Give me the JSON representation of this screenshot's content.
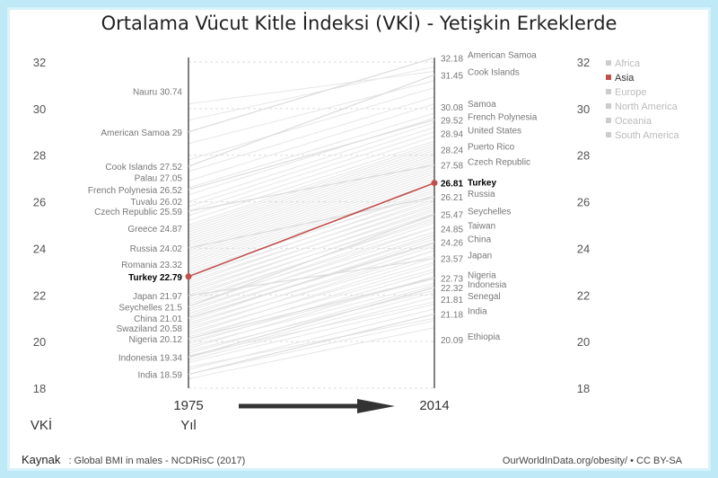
{
  "chart_data": {
    "type": "line",
    "title": "Ortalama Vücut Kitle İndeksi (VKİ) - Yetişkin Erkeklerde",
    "x": [
      "1975",
      "2014"
    ],
    "xlabel": "Yıl",
    "ylabel": "VKİ",
    "ylim": [
      18,
      32
    ],
    "yticks": [
      "18",
      "20",
      "22",
      "24",
      "26",
      "28",
      "30",
      "32"
    ],
    "grid": true,
    "legend_position": "right",
    "legend": [
      {
        "name": "Africa",
        "color": "#cccccc",
        "selected": false
      },
      {
        "name": "Asia",
        "color": "#c0504d",
        "selected": true
      },
      {
        "name": "Europe",
        "color": "#cccccc",
        "selected": false
      },
      {
        "name": "North America",
        "color": "#cccccc",
        "selected": false
      },
      {
        "name": "Oceania",
        "color": "#cccccc",
        "selected": false
      },
      {
        "name": "South America",
        "color": "#cccccc",
        "selected": false
      }
    ],
    "highlight_color": "#c0504d",
    "series": [
      {
        "name": "Turkey",
        "values": [
          22.79,
          26.81
        ],
        "highlight": true
      },
      {
        "name": "Nauru",
        "values": [
          30.74,
          null
        ]
      },
      {
        "name": "American Samoa",
        "values": [
          29,
          32.18
        ]
      },
      {
        "name": "Cook Islands",
        "values": [
          27.52,
          31.45
        ]
      },
      {
        "name": "Palau",
        "values": [
          27.05,
          null
        ]
      },
      {
        "name": "French Polynesia",
        "values": [
          26.52,
          29.52
        ]
      },
      {
        "name": "Tuvalu",
        "values": [
          26.02,
          null
        ]
      },
      {
        "name": "Czech Republic",
        "values": [
          25.59,
          27.58
        ]
      },
      {
        "name": "Greece",
        "values": [
          24.87,
          null
        ]
      },
      {
        "name": "Russia",
        "values": [
          24.02,
          26.21
        ]
      },
      {
        "name": "Romania",
        "values": [
          23.32,
          null
        ]
      },
      {
        "name": "Japan",
        "values": [
          21.97,
          23.57
        ]
      },
      {
        "name": "Seychelles",
        "values": [
          21.5,
          25.47
        ]
      },
      {
        "name": "China",
        "values": [
          21.01,
          24.26
        ]
      },
      {
        "name": "Swaziland",
        "values": [
          20.58,
          null
        ]
      },
      {
        "name": "Nigeria",
        "values": [
          20.12,
          22.73
        ]
      },
      {
        "name": "Indonesia",
        "values": [
          19.34,
          22.32
        ]
      },
      {
        "name": "India",
        "values": [
          18.59,
          21.18
        ]
      },
      {
        "name": "Samoa",
        "values": [
          null,
          30.08
        ]
      },
      {
        "name": "United States",
        "values": [
          null,
          28.94
        ]
      },
      {
        "name": "Puerto Rico",
        "values": [
          null,
          28.24
        ]
      },
      {
        "name": "Taiwan",
        "values": [
          null,
          24.85
        ]
      },
      {
        "name": "Senegal",
        "values": [
          null,
          21.81
        ]
      },
      {
        "name": "Ethiopia",
        "values": [
          null,
          20.09
        ]
      }
    ],
    "labels_1975": [
      {
        "text": "Nauru 30.74",
        "value": 30.74
      },
      {
        "text": "American Samoa 29",
        "value": 29
      },
      {
        "text": "Cook Islands 27.52",
        "value": 27.52
      },
      {
        "text": "Palau 27.05",
        "value": 27.05
      },
      {
        "text": "French Polynesia 26.52",
        "value": 26.52
      },
      {
        "text": "Tuvalu 26.02",
        "value": 26.02
      },
      {
        "text": "Czech Republic 25.59",
        "value": 25.59
      },
      {
        "text": "Greece 24.87",
        "value": 24.87
      },
      {
        "text": "Russia 24.02",
        "value": 24.02
      },
      {
        "text": "Romania 23.32",
        "value": 23.32
      },
      {
        "text": "Turkey 22.79",
        "value": 22.79,
        "highlight": true
      },
      {
        "text": "Japan 21.97",
        "value": 21.97
      },
      {
        "text": "Seychelles 21.5",
        "value": 21.5
      },
      {
        "text": "China 21.01",
        "value": 21.01
      },
      {
        "text": "Swaziland 20.58",
        "value": 20.58
      },
      {
        "text": "Nigeria 20.12",
        "value": 20.12
      },
      {
        "text": "Indonesia 19.34",
        "value": 19.34
      },
      {
        "text": "India 18.59",
        "value": 18.59
      }
    ],
    "labels_2014": [
      {
        "value_text": "32.18",
        "name": "American Samoa",
        "value": 32.18
      },
      {
        "value_text": "31.45",
        "name": "Cook Islands",
        "value": 31.45
      },
      {
        "value_text": "30.08",
        "name": "Samoa",
        "value": 30.08
      },
      {
        "value_text": "29.52",
        "name": "French Polynesia",
        "value": 29.52
      },
      {
        "value_text": "28.94",
        "name": "United States",
        "value": 28.94
      },
      {
        "value_text": "28.24",
        "name": "Puerto Rico",
        "value": 28.24
      },
      {
        "value_text": "27.58",
        "name": "Czech Republic",
        "value": 27.58
      },
      {
        "value_text": "26.81",
        "name": "Turkey",
        "value": 26.81,
        "highlight": true
      },
      {
        "value_text": "26.21",
        "name": "Russia",
        "value": 26.21
      },
      {
        "value_text": "25.47",
        "name": "Seychelles",
        "value": 25.47
      },
      {
        "value_text": "24.85",
        "name": "Taiwan",
        "value": 24.85
      },
      {
        "value_text": "24.26",
        "name": "China",
        "value": 24.26
      },
      {
        "value_text": "23.57",
        "name": "Japan",
        "value": 23.57
      },
      {
        "value_text": "22.73",
        "name": "Nigeria",
        "value": 22.73
      },
      {
        "value_text": "22.32",
        "name": "Indonesia",
        "value": 22.32
      },
      {
        "value_text": "21.81",
        "name": "Senegal",
        "value": 21.81
      },
      {
        "value_text": "21.18",
        "name": "India",
        "value": 21.18
      },
      {
        "value_text": "20.09",
        "name": "Ethiopia",
        "value": 20.09
      }
    ],
    "background_lines": [
      [
        18.4,
        20.6
      ],
      [
        18.6,
        20.9
      ],
      [
        18.8,
        21.4
      ],
      [
        18.9,
        21.0
      ],
      [
        19.1,
        21.6
      ],
      [
        19.2,
        21.9
      ],
      [
        19.3,
        22.1
      ],
      [
        19.4,
        21.7
      ],
      [
        19.5,
        22.4
      ],
      [
        19.6,
        22.2
      ],
      [
        19.7,
        22.8
      ],
      [
        19.8,
        22.5
      ],
      [
        19.9,
        23.0
      ],
      [
        20.0,
        22.7
      ],
      [
        20.1,
        23.3
      ],
      [
        20.2,
        23.1
      ],
      [
        20.3,
        23.6
      ],
      [
        20.4,
        23.4
      ],
      [
        20.5,
        23.9
      ],
      [
        20.6,
        23.7
      ],
      [
        20.7,
        24.1
      ],
      [
        20.8,
        23.9
      ],
      [
        20.9,
        24.4
      ],
      [
        21.0,
        24.2
      ],
      [
        21.1,
        24.6
      ],
      [
        21.2,
        24.5
      ],
      [
        21.3,
        24.9
      ],
      [
        21.4,
        24.7
      ],
      [
        21.5,
        25.1
      ],
      [
        21.6,
        24.9
      ],
      [
        21.7,
        25.3
      ],
      [
        21.8,
        25.2
      ],
      [
        21.9,
        25.5
      ],
      [
        22.0,
        25.4
      ],
      [
        22.1,
        25.7
      ],
      [
        22.2,
        25.6
      ],
      [
        22.3,
        25.9
      ],
      [
        22.4,
        25.8
      ],
      [
        22.5,
        26.1
      ],
      [
        22.6,
        26.0
      ],
      [
        22.7,
        26.3
      ],
      [
        22.8,
        26.2
      ],
      [
        22.9,
        26.5
      ],
      [
        23.0,
        26.4
      ],
      [
        23.1,
        26.6
      ],
      [
        23.2,
        26.7
      ],
      [
        23.3,
        26.8
      ],
      [
        23.4,
        26.9
      ],
      [
        23.5,
        27.0
      ],
      [
        23.6,
        27.1
      ],
      [
        23.7,
        27.2
      ],
      [
        23.8,
        27.3
      ],
      [
        23.9,
        27.4
      ],
      [
        24.0,
        27.5
      ],
      [
        24.1,
        27.6
      ],
      [
        24.2,
        27.7
      ],
      [
        24.3,
        27.8
      ],
      [
        24.4,
        27.9
      ],
      [
        24.5,
        28.0
      ],
      [
        24.6,
        28.1
      ],
      [
        24.7,
        28.2
      ],
      [
        24.8,
        28.3
      ],
      [
        24.9,
        28.4
      ],
      [
        25.0,
        28.5
      ],
      [
        25.2,
        28.6
      ],
      [
        25.4,
        28.8
      ],
      [
        25.6,
        29.0
      ],
      [
        25.8,
        29.2
      ],
      [
        26.0,
        29.4
      ],
      [
        26.3,
        29.6
      ],
      [
        26.6,
        29.8
      ],
      [
        26.9,
        30.2
      ],
      [
        27.3,
        30.5
      ],
      [
        27.8,
        30.9
      ],
      [
        28.5,
        31.2
      ],
      [
        29.5,
        31.8
      ],
      [
        30.2,
        31.6
      ]
    ]
  },
  "x_label_1975": "1975",
  "x_label_2014": "2014",
  "ylabel_text": "VKİ",
  "xlabel_text": "Yıl",
  "footer": {
    "source_label": "Kaynak",
    "source_text": ": Global BMI in males - NCDRisC (2017)",
    "credit": "OurWorldInData.org/obesity/ • CC BY-SA"
  }
}
